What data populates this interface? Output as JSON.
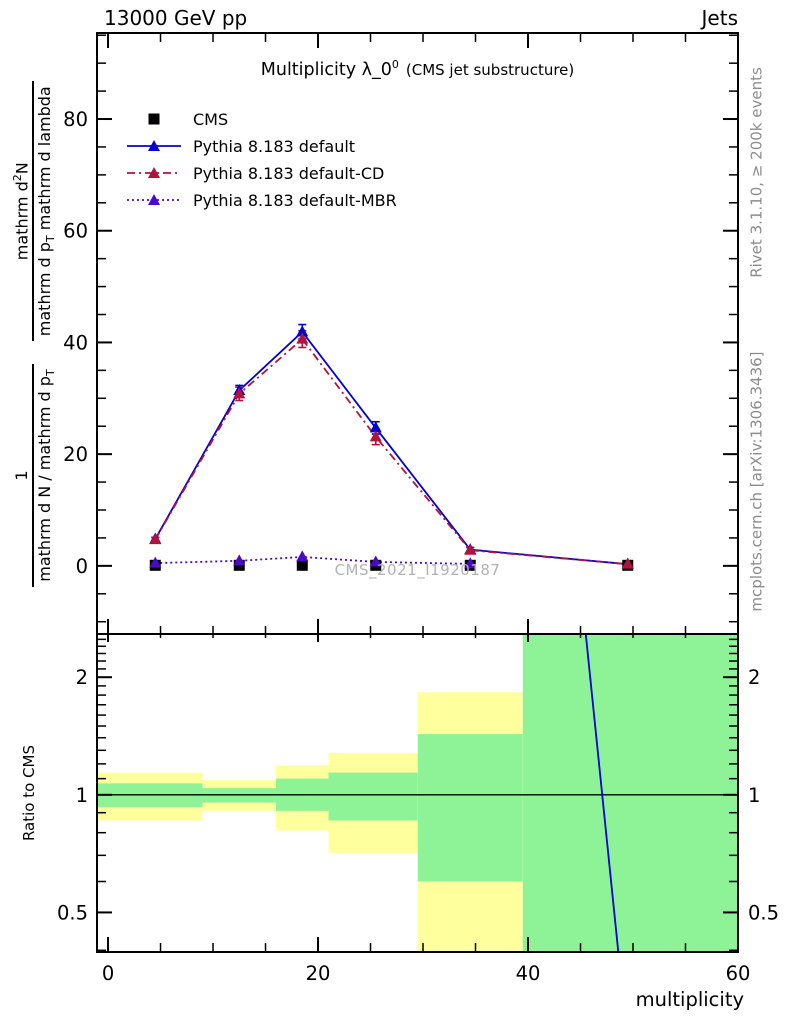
{
  "header": {
    "left": "13000 GeV pp",
    "right": "Jets"
  },
  "title": {
    "main": "Multiplicity λ_0",
    "sup": "0",
    "note": "(CMS jet substructure)"
  },
  "watermark": "CMS_2021_I1920187",
  "side_notes": {
    "top": "Rivet 3.1.10, ≥ 200k events",
    "bottom": "mcplots.cern.ch [arXiv:1306.3436]"
  },
  "y_axis_label": {
    "frac1_num": "1",
    "frac1_den_main": "mathrm d N / mathrm d p",
    "frac1_den_sub": "T",
    "frac2_num_main": "mathrm d",
    "frac2_num_sup": "2",
    "frac2_num_tail": "N",
    "frac2_den_a": "mathrm d p",
    "frac2_den_sub": "T",
    "frac2_den_b": " mathrm d lambda"
  },
  "ratio_label": "Ratio to CMS",
  "legend": [
    {
      "label": "CMS",
      "color": "#000000",
      "marker": "square",
      "line": "none"
    },
    {
      "label": "Pythia 8.183 default",
      "color": "#0202cd",
      "marker": "triangle",
      "line": "solid"
    },
    {
      "label": "Pythia 8.183 default-CD",
      "color": "#b2123c",
      "marker": "triangle",
      "line": "dashdot"
    },
    {
      "label": "Pythia 8.183 default-MBR",
      "color": "#4a08c8",
      "marker": "triangle",
      "line": "dotted"
    }
  ],
  "x_axis": {
    "label": "multiplicity",
    "ticks": [
      0,
      20,
      40,
      60
    ],
    "minor_step": 5,
    "lim": [
      -1.05,
      60
    ]
  },
  "main_y_axis": {
    "ticks": [
      0,
      20,
      40,
      60,
      80
    ],
    "minor_step": 5,
    "lim": [
      -12.2,
      95.4
    ]
  },
  "ratio_y_axis": {
    "ticks": [
      0.5,
      1,
      2
    ],
    "tick_labels": [
      "0.5",
      "1",
      "2"
    ],
    "minors": [
      0.4,
      0.6,
      0.7,
      0.8,
      0.9,
      1.1,
      1.2,
      1.3,
      1.4,
      1.5,
      1.6,
      1.7,
      1.8,
      1.9,
      2.1,
      2.2,
      2.3,
      2.4,
      2.5
    ],
    "lim": [
      0.396,
      2.58
    ],
    "scale": "log"
  },
  "colors": {
    "band_yellow": "#feff9d",
    "band_green": "#8ef297",
    "axis": "#000000",
    "gray_text": "#8c8c8c",
    "watermark": "#b2b2b2"
  },
  "chart_data": [
    {
      "type": "line",
      "panel": "main",
      "title": "Multiplicity λ_0^0 (CMS jet substructure)",
      "xlabel": "multiplicity",
      "ylabel": "1/(dN/dp_T) d^2N/(dp_T dlambda)",
      "xlim": [
        -1.05,
        60
      ],
      "ylim": [
        -12.2,
        95.4
      ],
      "series": [
        {
          "name": "CMS",
          "color": "#000000",
          "marker": "square",
          "line": "none",
          "x": [
            4.5,
            12.5,
            18.5,
            25.5,
            34.5,
            49.5
          ],
          "values": [
            0.1,
            0.1,
            0.1,
            0.1,
            0.1,
            0.1
          ]
        },
        {
          "name": "Pythia 8.183 default",
          "color": "#0202cd",
          "marker": "triangle",
          "line": "solid",
          "x": [
            4.5,
            12.5,
            18.5,
            25.5,
            34.5,
            49.5
          ],
          "values": [
            4.8,
            31.4,
            41.9,
            24.7,
            2.9,
            0.3
          ],
          "errors": [
            0.3,
            0.9,
            1.3,
            1.1,
            0.4,
            0.15
          ]
        },
        {
          "name": "Pythia 8.183 default-CD",
          "color": "#b2123c",
          "marker": "triangle",
          "line": "dashdot",
          "x": [
            4.5,
            12.5,
            18.5,
            25.5,
            34.5,
            49.5
          ],
          "values": [
            4.7,
            30.8,
            40.6,
            23.1,
            2.8,
            0.3
          ],
          "errors": [
            0.4,
            1.2,
            1.5,
            1.4,
            0.5,
            0.2
          ]
        },
        {
          "name": "Pythia 8.183 default-MBR",
          "color": "#4a08c8",
          "marker": "triangle",
          "line": "dotted",
          "x": [
            4.5,
            12.5,
            18.5,
            25.5,
            34.5
          ],
          "values": [
            0.5,
            0.9,
            1.6,
            0.7,
            0.35
          ]
        }
      ]
    },
    {
      "type": "ratio-bands",
      "panel": "ratio",
      "ylabel": "Ratio to CMS",
      "ylim": [
        0.396,
        2.58
      ],
      "scale": "log",
      "baseline": 1,
      "bin_edges": [
        -1.05,
        9,
        16,
        21,
        29.5,
        39.5,
        60
      ],
      "bands": [
        {
          "yellow": [
            0.86,
            1.14
          ],
          "green": [
            0.93,
            1.07
          ]
        },
        {
          "yellow": [
            0.91,
            1.09
          ],
          "green": [
            0.955,
            1.04
          ]
        },
        {
          "yellow": [
            0.81,
            1.19
          ],
          "green": [
            0.91,
            1.1
          ]
        },
        {
          "yellow": [
            0.71,
            1.28
          ],
          "green": [
            0.86,
            1.14
          ]
        },
        {
          "yellow": [
            0.3,
            1.83
          ],
          "green": [
            0.6,
            1.43
          ]
        },
        {
          "yellow": null,
          "green": [
            0.3,
            2.7
          ]
        }
      ],
      "ratio_line": {
        "name": "Pythia 8.183 default",
        "color": "#0202cd",
        "points": [
          [
            45.5,
            2.58
          ],
          [
            48.6,
            0.396
          ]
        ]
      }
    }
  ]
}
